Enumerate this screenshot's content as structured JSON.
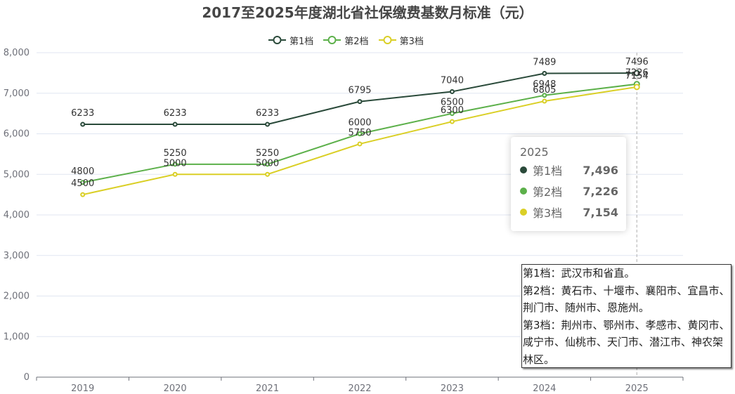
{
  "title": "2017至2025年度湖北省社保缴费基数月标准（元）",
  "chart_data": {
    "type": "line",
    "title": "2017至2025年度湖北省社保缴费基数月标准（元）",
    "categories": [
      "2019",
      "2020",
      "2021",
      "2022",
      "2023",
      "2024",
      "2025"
    ],
    "y_ticks": [
      "0",
      "1,000",
      "2,000",
      "3,000",
      "4,000",
      "5,000",
      "6,000",
      "7,000",
      "8,000"
    ],
    "ylim": [
      0,
      8000
    ],
    "grid": true,
    "legend_position": "top-center",
    "series": [
      {
        "name": "第1档",
        "color": "#2a4a3a",
        "values": [
          6233,
          6233,
          6233,
          6795,
          7040,
          7489,
          7496
        ]
      },
      {
        "name": "第2档",
        "color": "#5cb04a",
        "values": [
          4800,
          5250,
          5250,
          6000,
          6500,
          6948,
          7226
        ]
      },
      {
        "name": "第3档",
        "color": "#dacf26",
        "values": [
          4500,
          5000,
          5000,
          5750,
          6300,
          6805,
          7154
        ]
      }
    ]
  },
  "tooltip": {
    "header": "2025",
    "rows": [
      {
        "name": "第1档",
        "value": "7,496",
        "color": "#2a4a3a"
      },
      {
        "name": "第2档",
        "value": "7,226",
        "color": "#5cb04a"
      },
      {
        "name": "第3档",
        "value": "7,154",
        "color": "#dacf26"
      }
    ]
  },
  "note": {
    "lines": [
      "第1档：武汉市和省直。",
      "第2档：黄石市、十堰市、襄阳市、宜昌市、荆门市、随州市、恩施州。",
      "第3档：荆州市、鄂州市、孝感市、黄冈市、咸宁市、仙桃市、天门市、潜江市、神农架林区。"
    ]
  }
}
